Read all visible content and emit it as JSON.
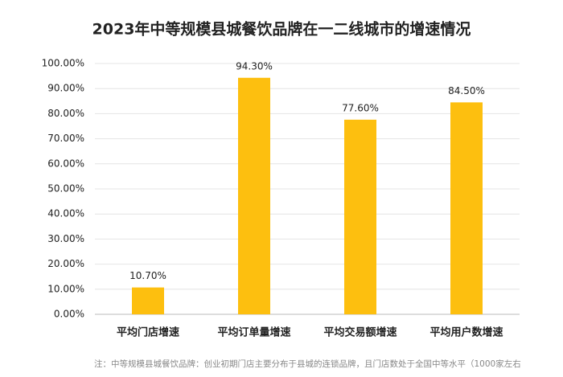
{
  "chart_data": {
    "type": "bar",
    "title": "2023年中等规模县城餐饮品牌在一二线城市的增速情况",
    "categories": [
      "平均门店增速",
      "平均订单量增速",
      "平均交易额增速",
      "平均用户数增速"
    ],
    "values": [
      10.7,
      94.3,
      77.6,
      84.5
    ],
    "value_labels": [
      "10.70%",
      "94.30%",
      "77.60%",
      "84.50%"
    ],
    "color": "#fdbf0f",
    "ylim": [
      0,
      100
    ],
    "yticks": [
      {
        "value": 0,
        "label": "0.00%"
      },
      {
        "value": 10,
        "label": "10.00%"
      },
      {
        "value": 20,
        "label": "20.00%"
      },
      {
        "value": 30,
        "label": "30.00%"
      },
      {
        "value": 40,
        "label": "40.00%"
      },
      {
        "value": 50,
        "label": "50.00%"
      },
      {
        "value": 60,
        "label": "60.00%"
      },
      {
        "value": 70,
        "label": "70.00%"
      },
      {
        "value": 80,
        "label": "80.00%"
      },
      {
        "value": 90,
        "label": "90.00%"
      },
      {
        "value": 100,
        "label": "100.00%"
      }
    ],
    "grid": true,
    "note": "注：中等规模县城餐饮品牌：创业初期门店主要分布于县城的连锁品牌，且门店数处于全国中等水平（1000家左右"
  }
}
